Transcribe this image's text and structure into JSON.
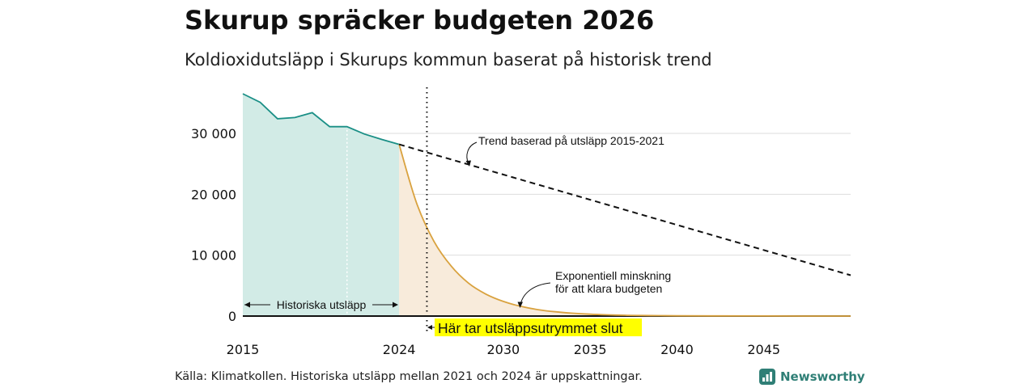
{
  "header": {
    "title": "Skurup spräcker budgeten 2026",
    "subtitle": "Koldioxidutsläpp i Skurups kommun baserat på historisk trend"
  },
  "footer": {
    "source": "Källa: Klimatkollen. Historiska utsläpp mellan 2021 och 2024 är uppskattningar.",
    "brand": "Newsworthy"
  },
  "colors": {
    "historic_line": "#1a8f86",
    "historic_fill": "#d2ebe6",
    "budget_line": "#d9a23f",
    "budget_fill": "#f8ebdb",
    "highlight": "#ffff00",
    "grid": "#dddddd"
  },
  "chart_data": {
    "type": "line",
    "xlim": [
      2015,
      2050
    ],
    "ylim": [
      0,
      37000
    ],
    "y_ticks": [
      0,
      10000,
      20000,
      30000
    ],
    "y_tick_labels": [
      "0",
      "10 000",
      "20 000",
      "30 000"
    ],
    "x_ticks": [
      2015,
      2024,
      2030,
      2035,
      2040,
      2045
    ],
    "x_tick_labels": [
      "2015",
      "2024",
      "2030",
      "2035",
      "2040",
      "2045"
    ],
    "series": [
      {
        "name": "Historiska utsläpp",
        "x": [
          2015,
          2016,
          2017,
          2018,
          2019,
          2020,
          2021,
          2022,
          2023,
          2024
        ],
        "y": [
          36500,
          35100,
          32400,
          32600,
          33400,
          31100,
          31100,
          29900,
          29000,
          28200
        ]
      },
      {
        "name": "Exponentiell minskning för att klara budgeten",
        "x": [
          2024,
          2025,
          2026,
          2027,
          2028,
          2029,
          2030,
          2031,
          2032,
          2033,
          2034,
          2035,
          2036,
          2037,
          2038,
          2039,
          2040,
          2042,
          2045,
          2050
        ],
        "y": [
          28200,
          18600,
          12300,
          8200,
          5400,
          3600,
          2400,
          1600,
          1050,
          700,
          460,
          300,
          200,
          130,
          90,
          60,
          40,
          20,
          8,
          2
        ]
      },
      {
        "name": "Trend baserad på utsläpp 2015-2021",
        "x": [
          2024,
          2050
        ],
        "y": [
          28200,
          6700
        ]
      }
    ],
    "budget_end_year": 2025.6,
    "estimate_marker_year": 2021,
    "annotations": {
      "historic": "Historiska utsläpp",
      "trend": "Trend baserad på utsläpp 2015-2021",
      "exponential_line1": "Exponentiell minskning",
      "exponential_line2": "för att klara budgeten",
      "budget_end": "Här tar utsläppsutrymmet slut"
    }
  }
}
